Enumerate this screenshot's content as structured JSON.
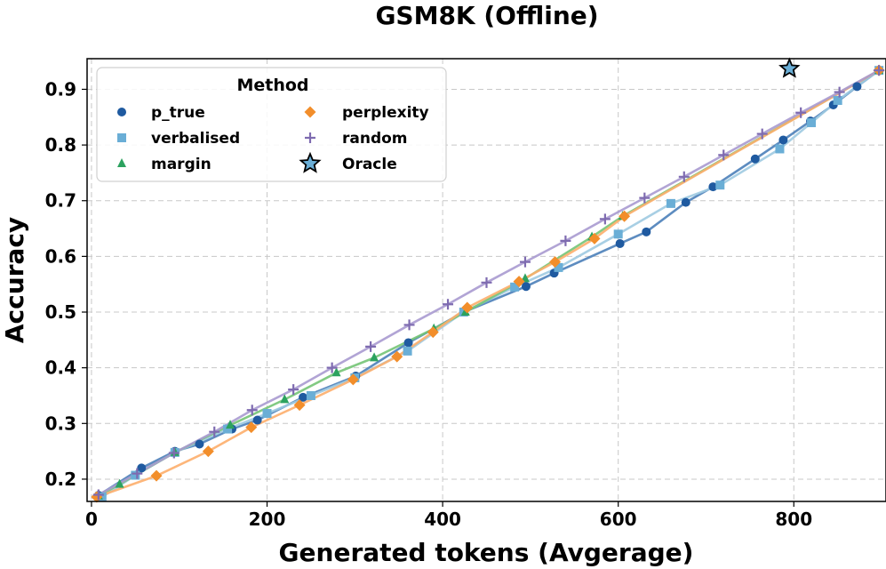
{
  "chart_data": {
    "type": "line",
    "title": "GSM8K (Offline)",
    "xlabel": "Generated tokens (Avgerage)",
    "ylabel": "Accuracy",
    "xlim": [
      -5,
      905
    ],
    "ylim": [
      0.16,
      0.955
    ],
    "xticks": [
      0,
      200,
      400,
      600,
      800
    ],
    "yticks": [
      0.2,
      0.3,
      0.4,
      0.5,
      0.6,
      0.7,
      0.8,
      0.9
    ],
    "grid": true,
    "legend": {
      "title": "Method",
      "placement": "top-left",
      "columns": 2
    },
    "series": [
      {
        "name": "p_true",
        "color": "#1f5aa0",
        "line_color": "#4b7fb9",
        "marker": "circle",
        "points": [
          [
            8,
            0.171
          ],
          [
            57,
            0.22
          ],
          [
            95,
            0.25
          ],
          [
            123,
            0.263
          ],
          [
            160,
            0.29
          ],
          [
            189,
            0.306
          ],
          [
            241,
            0.347
          ],
          [
            301,
            0.385
          ],
          [
            361,
            0.445
          ],
          [
            424,
            0.5
          ],
          [
            495,
            0.546
          ],
          [
            527,
            0.57
          ],
          [
            602,
            0.623
          ],
          [
            632,
            0.644
          ],
          [
            677,
            0.697
          ],
          [
            708,
            0.725
          ],
          [
            756,
            0.775
          ],
          [
            788,
            0.809
          ],
          [
            819,
            0.843
          ],
          [
            845,
            0.872
          ],
          [
            872,
            0.905
          ],
          [
            897,
            0.934
          ]
        ]
      },
      {
        "name": "verbalised",
        "color": "#6aaed6",
        "line_color": "#9ecae1",
        "marker": "square",
        "points": [
          [
            12,
            0.168
          ],
          [
            50,
            0.207
          ],
          [
            95,
            0.248
          ],
          [
            155,
            0.29
          ],
          [
            200,
            0.318
          ],
          [
            250,
            0.35
          ],
          [
            300,
            0.382
          ],
          [
            360,
            0.43
          ],
          [
            424,
            0.5
          ],
          [
            482,
            0.545
          ],
          [
            532,
            0.58
          ],
          [
            600,
            0.64
          ],
          [
            660,
            0.695
          ],
          [
            716,
            0.728
          ],
          [
            784,
            0.793
          ],
          [
            820,
            0.84
          ],
          [
            850,
            0.88
          ],
          [
            897,
            0.934
          ]
        ]
      },
      {
        "name": "margin",
        "color": "#2ca25f",
        "line_color": "#74c476",
        "marker": "triangle",
        "points": [
          [
            8,
            0.17
          ],
          [
            32,
            0.191
          ],
          [
            95,
            0.248
          ],
          [
            158,
            0.297
          ],
          [
            220,
            0.343
          ],
          [
            279,
            0.391
          ],
          [
            322,
            0.418
          ],
          [
            390,
            0.47
          ],
          [
            426,
            0.5
          ],
          [
            494,
            0.56
          ],
          [
            570,
            0.635
          ],
          [
            605,
            0.672
          ],
          [
            897,
            0.934
          ]
        ]
      },
      {
        "name": "perplexity",
        "color": "#f28e2b",
        "line_color": "#fdae6b",
        "marker": "diamond",
        "points": [
          [
            6,
            0.168
          ],
          [
            74,
            0.206
          ],
          [
            133,
            0.25
          ],
          [
            182,
            0.293
          ],
          [
            237,
            0.333
          ],
          [
            298,
            0.379
          ],
          [
            348,
            0.42
          ],
          [
            389,
            0.464
          ],
          [
            428,
            0.508
          ],
          [
            487,
            0.555
          ],
          [
            528,
            0.59
          ],
          [
            573,
            0.632
          ],
          [
            607,
            0.672
          ],
          [
            897,
            0.934
          ]
        ]
      },
      {
        "name": "random",
        "color": "#7e6bb0",
        "line_color": "#a99ad0",
        "marker": "plus",
        "points": [
          [
            8,
            0.172
          ],
          [
            52,
            0.21
          ],
          [
            94,
            0.247
          ],
          [
            140,
            0.285
          ],
          [
            183,
            0.324
          ],
          [
            230,
            0.361
          ],
          [
            274,
            0.4
          ],
          [
            318,
            0.438
          ],
          [
            362,
            0.477
          ],
          [
            406,
            0.514
          ],
          [
            450,
            0.553
          ],
          [
            494,
            0.59
          ],
          [
            540,
            0.628
          ],
          [
            585,
            0.667
          ],
          [
            630,
            0.705
          ],
          [
            675,
            0.743
          ],
          [
            720,
            0.782
          ],
          [
            764,
            0.82
          ],
          [
            808,
            0.858
          ],
          [
            852,
            0.895
          ],
          [
            897,
            0.934
          ]
        ]
      },
      {
        "name": "Oracle",
        "color": "#6aaed6",
        "line_color": "none",
        "marker": "star",
        "points": [
          [
            795,
            0.937
          ]
        ]
      }
    ]
  }
}
